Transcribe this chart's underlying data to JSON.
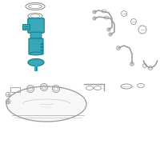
{
  "bg_color": "#ffffff",
  "highlight_color": "#3aaabb",
  "outline_color": "#999999",
  "blue_dark": "#1a8090",
  "figsize": [
    2.0,
    2.0
  ],
  "dpi": 100
}
